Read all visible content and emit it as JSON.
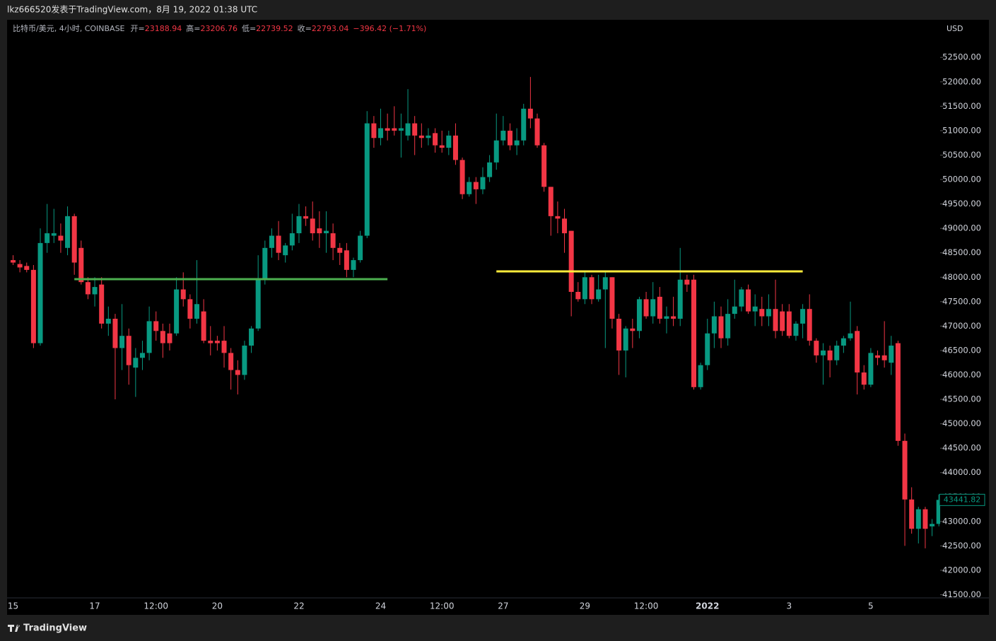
{
  "header": {
    "text": "lkz666520发表于TradingView.com，8月 19, 2022 01:38 UTC"
  },
  "legend": {
    "symbol": "比特币/美元, 4小时, COINBASE",
    "items": [
      {
        "label": "开=",
        "value": "23188.94"
      },
      {
        "label": "高=",
        "value": "23206.76"
      },
      {
        "label": "低=",
        "value": "22739.52"
      },
      {
        "label": "收=",
        "value": "22793.04"
      }
    ],
    "change": "−396.42 (−1.71%)"
  },
  "footer": {
    "brand": "TradingView"
  },
  "chart_data": {
    "type": "candlestick",
    "currency": "USD",
    "up_color": "#089981",
    "down_color": "#f23645",
    "categories": [
      "15",
      null,
      null,
      null,
      null,
      null,
      null,
      null,
      null,
      null,
      null,
      null,
      "17",
      null,
      null,
      null,
      null,
      null,
      null,
      null,
      null,
      "12:00",
      null,
      null,
      null,
      null,
      null,
      null,
      null,
      null,
      "20",
      null,
      null,
      null,
      null,
      null,
      null,
      null,
      null,
      null,
      null,
      null,
      "22",
      null,
      null,
      null,
      null,
      null,
      null,
      null,
      null,
      null,
      null,
      null,
      "24",
      null,
      null,
      null,
      null,
      null,
      null,
      null,
      null,
      "12:00",
      null,
      null,
      null,
      null,
      null,
      null,
      null,
      null,
      "27",
      null,
      null,
      null,
      null,
      null,
      null,
      null,
      null,
      null,
      null,
      null,
      "29",
      null,
      null,
      null,
      null,
      null,
      null,
      null,
      null,
      "12:00",
      null,
      null,
      null,
      null,
      null,
      null,
      null,
      null,
      "2022",
      null,
      null,
      null,
      null,
      null,
      null,
      null,
      null,
      null,
      null,
      null,
      "3",
      null,
      null,
      null,
      null,
      null,
      null,
      null,
      null,
      null,
      null,
      null,
      "5",
      null,
      null,
      null,
      null,
      null,
      null,
      null,
      null,
      null,
      null
    ],
    "open": [
      48350,
      48270,
      48230,
      48150,
      46650,
      48700,
      48850,
      48850,
      48600,
      49250,
      48600,
      47900,
      47650,
      47850,
      47050,
      47150,
      46550,
      46800,
      46150,
      46350,
      46450,
      47100,
      46900,
      46850,
      46850,
      47750,
      47550,
      47150,
      47300,
      46700,
      46700,
      46700,
      46450,
      46100,
      46000,
      46600,
      46950,
      47950,
      48600,
      48850,
      48450,
      48650,
      48900,
      49250,
      49200,
      49000,
      48900,
      48900,
      48600,
      48550,
      48150,
      48350,
      48850,
      51150,
      50850,
      51050,
      51050,
      51000,
      50900,
      51150,
      50900,
      50850,
      50950,
      50700,
      50650,
      50900,
      50400,
      49700,
      49950,
      49800,
      50050,
      50350,
      50800,
      51000,
      50700,
      50800,
      51450,
      51250,
      50700,
      49850,
      49250,
      49200,
      48950,
      47700,
      47550,
      48000,
      47550,
      47750,
      48000,
      47150,
      46500,
      46950,
      46900,
      47550,
      47200,
      47600,
      47150,
      47200,
      47150,
      47950,
      47950,
      45750,
      46200,
      46850,
      47200,
      46750,
      47250,
      47400,
      47750,
      47300,
      47350,
      47200,
      47350,
      47300,
      47300,
      46800,
      47050,
      47350,
      46700,
      46400,
      46500,
      46300,
      46600,
      46750,
      46900,
      46050,
      45800,
      46400,
      46400,
      46250,
      46650,
      44650,
      43450,
      42850,
      43250,
      42900,
      42950
    ],
    "high": [
      48450,
      48350,
      48300,
      48250,
      49000,
      49500,
      49400,
      49100,
      49450,
      49300,
      48750,
      48000,
      48000,
      48000,
      47400,
      47250,
      47450,
      46950,
      46550,
      46700,
      47400,
      47300,
      47050,
      47050,
      48000,
      48100,
      47650,
      48350,
      47550,
      47000,
      46800,
      47000,
      46550,
      46300,
      46700,
      47000,
      48450,
      48750,
      49000,
      49150,
      48700,
      49300,
      49500,
      49450,
      49550,
      49350,
      49350,
      49100,
      48700,
      48700,
      48400,
      48950,
      51400,
      51300,
      51450,
      51350,
      51500,
      51350,
      51850,
      51300,
      51150,
      51050,
      51050,
      51000,
      51000,
      51150,
      50450,
      50050,
      50050,
      50250,
      50500,
      51350,
      51300,
      51150,
      51050,
      51550,
      52100,
      51350,
      50750,
      49850,
      49550,
      49400,
      48950,
      47900,
      48100,
      48050,
      48050,
      48100,
      48000,
      47250,
      47000,
      47150,
      47600,
      47700,
      47900,
      47800,
      47400,
      47600,
      48600,
      48050,
      48050,
      46250,
      47150,
      47500,
      47400,
      47550,
      47950,
      47800,
      47850,
      47650,
      47600,
      47650,
      47950,
      47450,
      47450,
      47100,
      47450,
      47650,
      46750,
      46650,
      46600,
      46700,
      46800,
      47500,
      47000,
      46200,
      46550,
      46500,
      47100,
      46800,
      46700,
      44800,
      43700,
      43300,
      43300,
      43050,
      43550
    ],
    "low": [
      48250,
      48100,
      48100,
      46550,
      46600,
      48500,
      48700,
      48500,
      48450,
      48050,
      47850,
      47550,
      47400,
      46950,
      46800,
      45500,
      46100,
      45800,
      45550,
      46100,
      46300,
      46700,
      46350,
      46500,
      46800,
      47400,
      46950,
      47050,
      46650,
      46400,
      46500,
      46150,
      45700,
      45600,
      45900,
      46450,
      46900,
      47850,
      48400,
      48350,
      48300,
      48550,
      48700,
      49050,
      48750,
      48600,
      48500,
      48350,
      48250,
      48000,
      48000,
      48300,
      48800,
      50650,
      50700,
      50800,
      50900,
      50450,
      50800,
      50500,
      50650,
      50700,
      50550,
      50550,
      50500,
      50300,
      49600,
      49650,
      49500,
      49700,
      49950,
      50200,
      50700,
      50600,
      50500,
      50700,
      51050,
      50650,
      49750,
      48850,
      48900,
      48500,
      47200,
      47500,
      47450,
      47450,
      47500,
      46550,
      46950,
      46000,
      45950,
      46550,
      46750,
      47150,
      47050,
      47050,
      46850,
      47000,
      47000,
      47700,
      45700,
      45700,
      46100,
      46550,
      46550,
      46600,
      47150,
      47300,
      47250,
      47000,
      47000,
      47000,
      46750,
      46800,
      46750,
      46700,
      46750,
      46600,
      46250,
      45800,
      45950,
      46200,
      46450,
      46700,
      45600,
      45700,
      45750,
      46200,
      46150,
      46000,
      44550,
      42500,
      42750,
      42550,
      42450,
      42700,
      42900
    ],
    "close": [
      48300,
      48200,
      48150,
      46650,
      48700,
      48900,
      48900,
      48750,
      49250,
      48300,
      47900,
      47650,
      47800,
      47050,
      47150,
      46550,
      46800,
      46200,
      46350,
      46450,
      47100,
      46900,
      46650,
      46650,
      47750,
      47550,
      47150,
      47450,
      46700,
      46650,
      46650,
      46450,
      46100,
      46000,
      46600,
      46950,
      47950,
      48600,
      48850,
      48500,
      48650,
      48900,
      49250,
      49200,
      48900,
      48900,
      48950,
      48600,
      48500,
      48150,
      48350,
      48850,
      51150,
      50850,
      51050,
      51000,
      51000,
      51050,
      51150,
      50900,
      50850,
      50900,
      50700,
      50650,
      50900,
      50400,
      49700,
      49950,
      49800,
      50050,
      50350,
      50800,
      51000,
      50700,
      50800,
      51450,
      51250,
      50700,
      49850,
      49250,
      49200,
      48900,
      47700,
      47550,
      48000,
      47550,
      47750,
      48000,
      47150,
      46500,
      46950,
      46900,
      47550,
      47200,
      47550,
      47150,
      47200,
      47150,
      47950,
      47850,
      45750,
      46200,
      46850,
      47200,
      46750,
      47250,
      47400,
      47750,
      47300,
      47400,
      47200,
      47350,
      46900,
      46900,
      46800,
      47050,
      47350,
      46700,
      46400,
      46500,
      46300,
      46600,
      46750,
      46850,
      46050,
      45800,
      46450,
      46350,
      46300,
      46600,
      44650,
      43450,
      42850,
      43250,
      42850,
      42950,
      43441.82
    ],
    "ylim": [
      41450,
      53270
    ],
    "yticks": [
      {
        "value": 41500,
        "label": "41500.00"
      },
      {
        "value": 42000,
        "label": "42000.00"
      },
      {
        "value": 42500,
        "label": "42500.00"
      },
      {
        "value": 43000,
        "label": "43000.00"
      },
      {
        "value": 43500,
        "label": "43500.00"
      },
      {
        "value": 44000,
        "label": "44000.00"
      },
      {
        "value": 44500,
        "label": "44500.00"
      },
      {
        "value": 45000,
        "label": "45000.00"
      },
      {
        "value": 45500,
        "label": "45500.00"
      },
      {
        "value": 46000,
        "label": "46000.00"
      },
      {
        "value": 46500,
        "label": "46500.00"
      },
      {
        "value": 47000,
        "label": "47000.00"
      },
      {
        "value": 47500,
        "label": "47500.00"
      },
      {
        "value": 48000,
        "label": "48000.00"
      },
      {
        "value": 48500,
        "label": "48500.00"
      },
      {
        "value": 49000,
        "label": "49000.00"
      },
      {
        "value": 49500,
        "label": "49500.00"
      },
      {
        "value": 50000,
        "label": "50000.00"
      },
      {
        "value": 50500,
        "label": "50500.00"
      },
      {
        "value": 51000,
        "label": "51000.00"
      },
      {
        "value": 51500,
        "label": "51500.00"
      },
      {
        "value": 52000,
        "label": "52000.00"
      },
      {
        "value": 52500,
        "label": "52500.00"
      }
    ],
    "grid": false,
    "lines": [
      {
        "color": "#4caf50",
        "value": 47960,
        "from": 9,
        "to": 55
      },
      {
        "color": "#ffeb3b",
        "value": 48120,
        "from": 71,
        "to": 116
      }
    ]
  }
}
